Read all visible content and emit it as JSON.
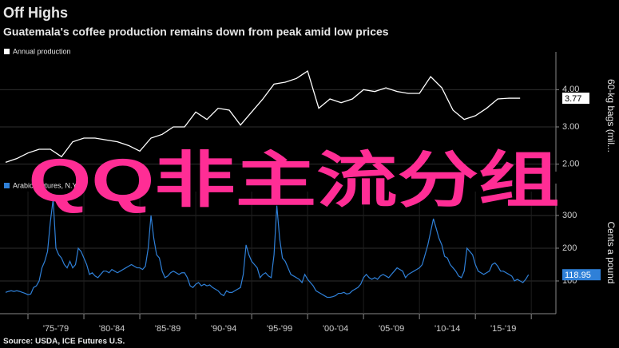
{
  "title": "Off Highs",
  "subtitle": "Guatemala's coffee production remains down from peak amid low prices",
  "source": "Source: USDA, ICE Futures U.S.",
  "watermark": "QQ非主流分组",
  "chart_data": [
    {
      "type": "line",
      "y_label": "60-kg bags (mil...",
      "xlim": [
        1972.5,
        2022.2
      ],
      "ylim": [
        1.8,
        4.8
      ],
      "yticks": [
        {
          "value": 2,
          "label": "2.00"
        },
        {
          "value": 3,
          "label": "3.00"
        },
        {
          "value": 4,
          "label": "4.00"
        }
      ],
      "grid": true,
      "x": [
        1973,
        1974,
        1975,
        1976,
        1977,
        1978,
        1979,
        1980,
        1981,
        1982,
        1983,
        1984,
        1985,
        1986,
        1987,
        1988,
        1989,
        1990,
        1991,
        1992,
        1993,
        1994,
        1995,
        1996,
        1997,
        1998,
        1999,
        2000,
        2001,
        2002,
        2003,
        2004,
        2005,
        2006,
        2007,
        2008,
        2009,
        2010,
        2011,
        2012,
        2013,
        2014,
        2015,
        2016,
        2017,
        2018,
        2019
      ],
      "series": [
        {
          "name": "Annual production",
          "color": "#ffffff",
          "values": [
            2.05,
            2.15,
            2.3,
            2.4,
            2.4,
            2.2,
            2.6,
            2.7,
            2.7,
            2.65,
            2.6,
            2.5,
            2.35,
            2.7,
            2.8,
            3.0,
            3.0,
            3.4,
            3.2,
            3.5,
            3.45,
            3.05,
            3.4,
            3.75,
            4.15,
            4.2,
            4.3,
            4.5,
            3.5,
            3.75,
            3.65,
            3.75,
            4.0,
            3.95,
            4.05,
            3.95,
            3.9,
            3.9,
            4.35,
            4.05,
            3.45,
            3.2,
            3.3,
            3.5,
            3.75,
            3.77,
            3.77
          ]
        }
      ]
    },
    {
      "type": "line",
      "y_label": "Cents a pound",
      "xlim": [
        1972.5,
        2022.2
      ],
      "ylim": [
        0,
        373
      ],
      "yticks": [
        100,
        200,
        300
      ],
      "xticks": [
        {
          "value": 1977.5,
          "label": "'75-'79"
        },
        {
          "value": 1982.5,
          "label": "'80-'84"
        },
        {
          "value": 1987.5,
          "label": "'85-'89"
        },
        {
          "value": 1992.5,
          "label": "'90-'94"
        },
        {
          "value": 1997.5,
          "label": "'95-'99"
        },
        {
          "value": 2002.5,
          "label": "'00-'04"
        },
        {
          "value": 2007.5,
          "label": "'05-'09"
        },
        {
          "value": 2012.5,
          "label": "'10-'14"
        },
        {
          "value": 2017.5,
          "label": "'15-'19"
        }
      ],
      "xticks_minor": [
        1975,
        1980,
        1985,
        1990,
        1995,
        2000,
        2005,
        2010,
        2015,
        2020
      ],
      "grid": true,
      "x": [
        1973,
        1973.25,
        1973.5,
        1973.75,
        1974,
        1974.25,
        1974.5,
        1974.75,
        1975,
        1975.25,
        1975.5,
        1975.75,
        1976,
        1976.25,
        1976.5,
        1976.75,
        1977,
        1977.25,
        1977.5,
        1977.75,
        1978,
        1978.25,
        1978.5,
        1978.75,
        1979,
        1979.25,
        1979.5,
        1979.75,
        1980,
        1980.25,
        1980.5,
        1980.75,
        1981,
        1981.25,
        1981.5,
        1981.75,
        1982,
        1982.25,
        1982.5,
        1982.75,
        1983,
        1983.25,
        1983.5,
        1983.75,
        1984,
        1984.25,
        1984.5,
        1984.75,
        1985,
        1985.25,
        1985.5,
        1985.75,
        1986,
        1986.25,
        1986.5,
        1986.75,
        1987,
        1987.25,
        1987.5,
        1987.75,
        1988,
        1988.25,
        1988.5,
        1988.75,
        1989,
        1989.25,
        1989.5,
        1989.75,
        1990,
        1990.25,
        1990.5,
        1990.75,
        1991,
        1991.25,
        1991.5,
        1991.75,
        1992,
        1992.25,
        1992.5,
        1992.75,
        1993,
        1993.25,
        1993.5,
        1993.75,
        1994,
        1994.25,
        1994.5,
        1994.75,
        1995,
        1995.25,
        1995.5,
        1995.75,
        1996,
        1996.25,
        1996.5,
        1996.75,
        1997,
        1997.25,
        1997.5,
        1997.75,
        1998,
        1998.25,
        1998.5,
        1998.75,
        1999,
        1999.25,
        1999.5,
        1999.75,
        2000,
        2000.25,
        2000.5,
        2000.75,
        2001,
        2001.25,
        2001.5,
        2001.75,
        2002,
        2002.25,
        2002.5,
        2002.75,
        2003,
        2003.25,
        2003.5,
        2003.75,
        2004,
        2004.25,
        2004.5,
        2004.75,
        2005,
        2005.25,
        2005.5,
        2005.75,
        2006,
        2006.25,
        2006.5,
        2006.75,
        2007,
        2007.25,
        2007.5,
        2007.75,
        2008,
        2008.25,
        2008.5,
        2008.75,
        2009,
        2009.25,
        2009.5,
        2009.75,
        2010,
        2010.25,
        2010.5,
        2010.75,
        2011,
        2011.25,
        2011.5,
        2011.75,
        2012,
        2012.25,
        2012.5,
        2012.75,
        2013,
        2013.25,
        2013.5,
        2013.75,
        2014,
        2014.25,
        2014.5,
        2014.75,
        2015,
        2015.25,
        2015.5,
        2015.75,
        2016,
        2016.25,
        2016.5,
        2016.75,
        2017,
        2017.25,
        2017.5,
        2017.75,
        2018,
        2018.25,
        2018.5,
        2018.75,
        2019,
        2019.25,
        2019.5,
        2019.75
      ],
      "series": [
        {
          "name": "Arabica futures, N.Y.",
          "color": "#2f80d8",
          "values": [
            65,
            68,
            70,
            68,
            70,
            68,
            65,
            62,
            58,
            60,
            80,
            85,
            100,
            140,
            160,
            190,
            280,
            350,
            200,
            180,
            170,
            150,
            140,
            160,
            140,
            150,
            200,
            190,
            170,
            150,
            120,
            125,
            115,
            110,
            120,
            130,
            130,
            125,
            135,
            130,
            125,
            130,
            135,
            140,
            145,
            150,
            145,
            140,
            140,
            135,
            145,
            200,
            300,
            230,
            180,
            170,
            130,
            110,
            115,
            125,
            130,
            125,
            120,
            125,
            125,
            110,
            85,
            80,
            90,
            95,
            85,
            90,
            85,
            88,
            80,
            75,
            70,
            60,
            55,
            70,
            65,
            65,
            70,
            75,
            80,
            120,
            210,
            180,
            160,
            150,
            140,
            110,
            120,
            125,
            115,
            110,
            180,
            330,
            230,
            170,
            160,
            140,
            120,
            115,
            110,
            105,
            95,
            120,
            105,
            95,
            85,
            70,
            65,
            60,
            55,
            50,
            50,
            52,
            55,
            62,
            62,
            65,
            60,
            62,
            70,
            75,
            80,
            90,
            110,
            120,
            110,
            105,
            110,
            105,
            115,
            120,
            115,
            110,
            120,
            130,
            140,
            135,
            130,
            110,
            120,
            125,
            130,
            135,
            140,
            150,
            180,
            210,
            250,
            290,
            260,
            230,
            210,
            175,
            170,
            150,
            140,
            130,
            115,
            110,
            130,
            200,
            190,
            180,
            150,
            130,
            125,
            120,
            125,
            130,
            150,
            155,
            145,
            130,
            130,
            125,
            120,
            115,
            100,
            105,
            100,
            95,
            105,
            118.95
          ]
        }
      ]
    }
  ]
}
